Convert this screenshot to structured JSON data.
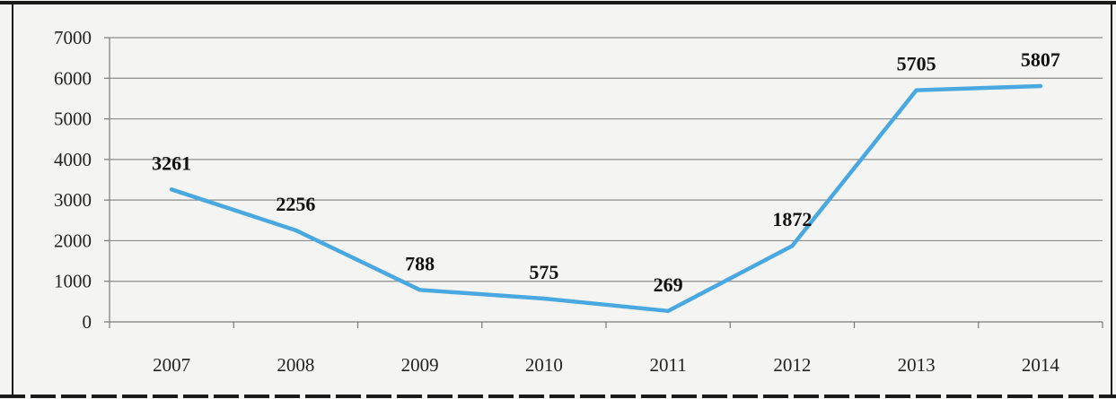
{
  "chart_data": {
    "type": "line",
    "title": "",
    "xlabel": "",
    "ylabel": "",
    "categories": [
      "2007",
      "2008",
      "2009",
      "2010",
      "2011",
      "2012",
      "2013",
      "2014"
    ],
    "series": [
      {
        "values": [
          3261,
          2256,
          788,
          575,
          269,
          1872,
          5705,
          5807
        ]
      }
    ],
    "data_labels": [
      "3261",
      "2256",
      "788",
      "575",
      "269",
      "1872",
      "5705",
      "5807"
    ],
    "ylim": [
      0,
      7000
    ],
    "yticks": [
      0,
      1000,
      2000,
      3000,
      4000,
      5000,
      6000,
      7000
    ],
    "ytick_labels": [
      "0",
      "1000",
      "2000",
      "3000",
      "4000",
      "5000",
      "6000",
      "7000"
    ],
    "grid": true,
    "legend": "none",
    "colors": {
      "line": "#4aa8e0",
      "grid": "#8c8c8c",
      "axis": "#7a7a7a",
      "frame": "#1a1a1a",
      "background": "#f4f4f2"
    }
  }
}
